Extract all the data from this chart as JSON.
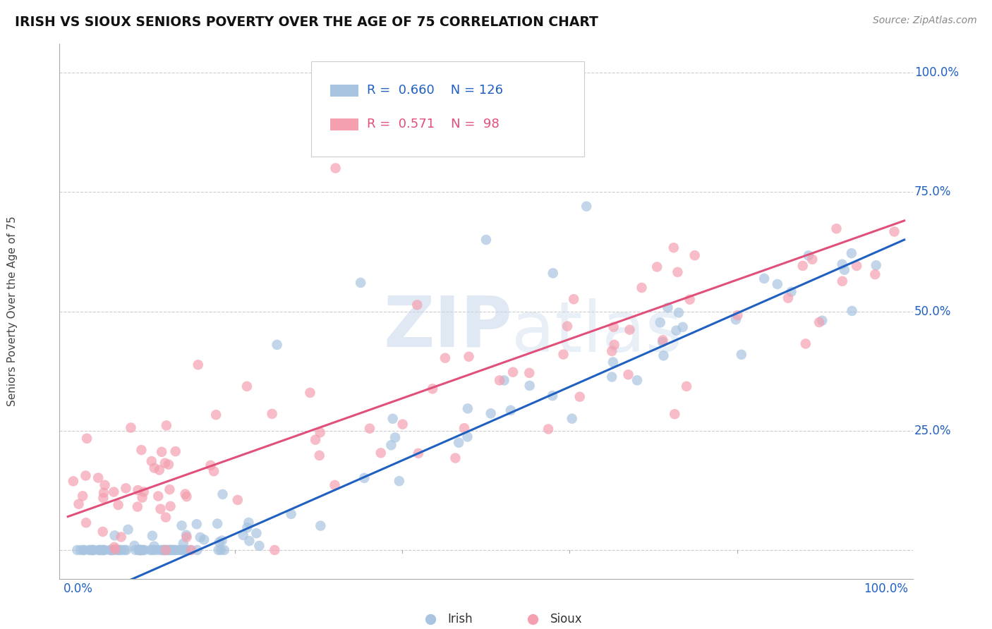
{
  "title": "IRISH VS SIOUX SENIORS POVERTY OVER THE AGE OF 75 CORRELATION CHART",
  "source": "Source: ZipAtlas.com",
  "ylabel": "Seniors Poverty Over the Age of 75",
  "irish_color": "#a8c4e0",
  "sioux_color": "#f4a0b0",
  "irish_line_color": "#2060c0",
  "sioux_line_color": "#e0507a",
  "irish_R": 0.66,
  "irish_N": 126,
  "sioux_R": 0.571,
  "sioux_N": 98,
  "background_color": "#ffffff",
  "grid_color": "#cccccc",
  "irish_line": [
    -0.12,
    0.77
  ],
  "sioux_line": [
    0.07,
    0.62
  ],
  "ytick_labels": [
    "25.0%",
    "50.0%",
    "75.0%",
    "100.0%"
  ],
  "ytick_positions": [
    0.25,
    0.5,
    0.75,
    1.0
  ],
  "watermark_zip_color": "#c8d8ea",
  "watermark_atlas_color": "#c8d8ea"
}
